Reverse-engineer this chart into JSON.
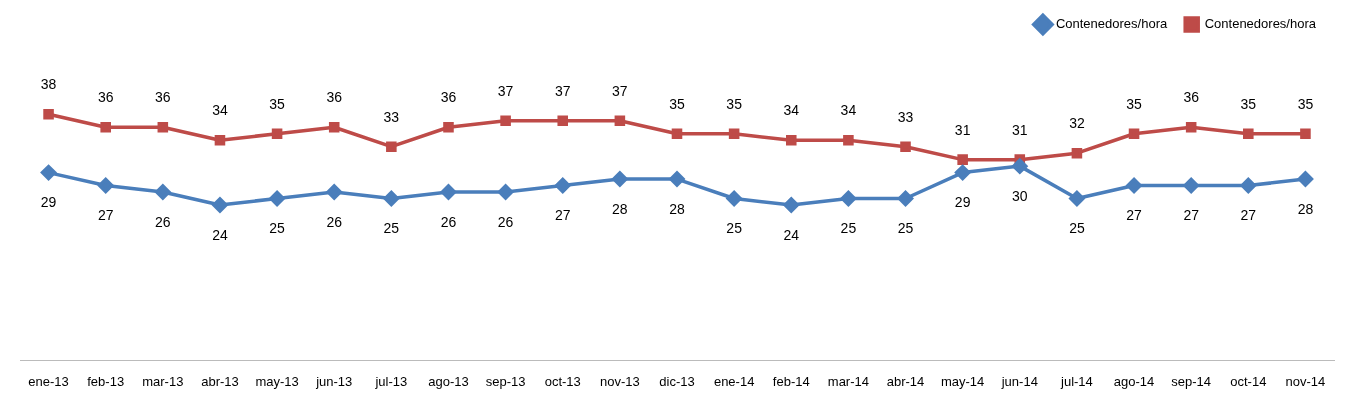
{
  "chart_data": {
    "type": "line",
    "categories": [
      "ene-13",
      "feb-13",
      "mar-13",
      "abr-13",
      "may-13",
      "jun-13",
      "jul-13",
      "ago-13",
      "sep-13",
      "oct-13",
      "nov-13",
      "dic-13",
      "ene-14",
      "feb-14",
      "mar-14",
      "abr-14",
      "may-14",
      "jun-14",
      "jul-14",
      "ago-14",
      "sep-14",
      "oct-14",
      "nov-14"
    ],
    "series": [
      {
        "name": "Contenedores/hora",
        "color": "#4a7ebb",
        "marker": "diamond",
        "values": [
          29,
          27,
          26,
          24,
          25,
          26,
          25,
          26,
          26,
          27,
          28,
          28,
          25,
          24,
          25,
          25,
          29,
          30,
          25,
          27,
          27,
          27,
          28
        ]
      },
      {
        "name": "Contenedores/hora",
        "color": "#be4b48",
        "marker": "square",
        "values": [
          38,
          36,
          36,
          34,
          35,
          36,
          33,
          36,
          37,
          37,
          37,
          35,
          35,
          34,
          34,
          33,
          31,
          31,
          32,
          35,
          36,
          35,
          35
        ]
      }
    ],
    "tick_labels": "x",
    "grid": false,
    "legend": "top right",
    "data_labels": true,
    "line_style": "solid"
  }
}
